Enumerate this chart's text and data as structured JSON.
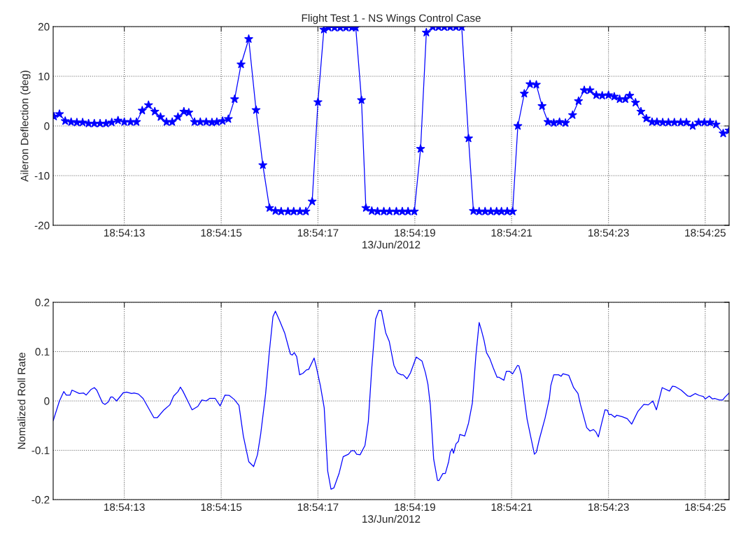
{
  "chart_data": [
    {
      "type": "line",
      "title": "Flight Test 1 - NS Wings Control Case",
      "xlabel": "13/Jun/2012",
      "ylabel": "Aileron Deflection (deg)",
      "xlim": [
        18.903203,
        18.907081
      ],
      "xticks": [
        {
          "value": 18.903611,
          "label": "18:54:13"
        },
        {
          "value": 18.904167,
          "label": "18:54:15"
        },
        {
          "value": 18.904722,
          "label": "18:54:17"
        },
        {
          "value": 18.905278,
          "label": "18:54:19"
        },
        {
          "value": 18.905833,
          "label": "18:54:21"
        },
        {
          "value": 18.906389,
          "label": "18:54:23"
        },
        {
          "value": 18.906944,
          "label": "18:54:25"
        }
      ],
      "ylim": [
        -20,
        20
      ],
      "yticks": [
        -20,
        -10,
        0,
        10,
        20
      ],
      "grid": true,
      "marker": "star",
      "line_style": "solid",
      "series": [
        {
          "color": "#0000ff",
          "x": [
            18.903208,
            18.903239,
            18.903272,
            18.903306,
            18.903339,
            18.903372,
            18.903406,
            18.903439,
            18.903472,
            18.903506,
            18.903539,
            18.903575,
            18.903611,
            18.903647,
            18.903681,
            18.903714,
            18.90375,
            18.903786,
            18.903819,
            18.903853,
            18.903886,
            18.903919,
            18.903953,
            18.903981,
            18.904014,
            18.904047,
            18.904081,
            18.904114,
            18.904142,
            18.904175,
            18.904208,
            18.904244,
            18.904281,
            18.904325,
            18.904367,
            18.904406,
            18.904444,
            18.904478,
            18.904511,
            18.90455,
            18.904583,
            18.904619,
            18.904653,
            18.904689,
            18.904722,
            18.904756,
            18.904783,
            18.904817,
            18.90485,
            18.904883,
            18.904917,
            18.904939,
            18.904972,
            18.904997,
            18.905031,
            18.905064,
            18.9051,
            18.905133,
            18.905172,
            18.905206,
            18.905239,
            18.905275,
            18.905311,
            18.905344,
            18.905381,
            18.905414,
            18.905447,
            18.905481,
            18.905514,
            18.905547,
            18.905586,
            18.905614,
            18.905647,
            18.905681,
            18.905714,
            18.905747,
            18.905775,
            18.905808,
            18.905839,
            18.905869,
            18.905906,
            18.905939,
            18.905975,
            18.906008,
            18.906042,
            18.906075,
            18.906108,
            18.906142,
            18.906183,
            18.906217,
            18.90625,
            18.906283,
            18.906319,
            18.906353,
            18.906389,
            18.906422,
            18.906453,
            18.906486,
            18.906511,
            18.906544,
            18.906575,
            18.906606,
            18.906639,
            18.906667,
            18.9067,
            18.906733,
            18.906767,
            18.906803,
            18.906836,
            18.906872,
            18.906906,
            18.906939,
            18.906972,
            18.907006,
            18.907047,
            18.907081
          ],
          "values": [
            1.9,
            2.4,
            1.0,
            0.8,
            0.7,
            0.7,
            0.5,
            0.5,
            0.5,
            0.5,
            0.7,
            1.1,
            0.8,
            0.8,
            0.8,
            3.1,
            4.2,
            2.9,
            1.8,
            0.8,
            0.8,
            1.8,
            2.9,
            2.7,
            0.8,
            0.8,
            0.8,
            0.7,
            0.8,
            1.0,
            1.4,
            5.4,
            12.4,
            17.5,
            3.2,
            -7.9,
            -16.5,
            -17.1,
            -17.2,
            -17.2,
            -17.2,
            -17.2,
            -17.2,
            -15.2,
            4.8,
            19.4,
            19.8,
            19.8,
            19.8,
            19.8,
            19.8,
            19.8,
            5.2,
            -16.5,
            -17.1,
            -17.2,
            -17.2,
            -17.2,
            -17.2,
            -17.2,
            -17.2,
            -17.2,
            -4.6,
            18.8,
            19.9,
            19.9,
            19.9,
            19.9,
            19.9,
            19.9,
            -2.5,
            -17.1,
            -17.2,
            -17.2,
            -17.2,
            -17.2,
            -17.2,
            -17.2,
            -17.2,
            0.0,
            6.5,
            8.4,
            8.3,
            4.0,
            0.8,
            0.6,
            0.8,
            0.6,
            2.2,
            5.0,
            7.2,
            7.2,
            6.2,
            6.1,
            6.2,
            5.9,
            5.4,
            5.4,
            6.1,
            4.7,
            2.9,
            1.5,
            0.8,
            0.8,
            0.7,
            0.7,
            0.7,
            0.7,
            0.7,
            0.0,
            0.7,
            0.7,
            0.7,
            0.3,
            -1.5,
            -0.9
          ]
        }
      ]
    },
    {
      "type": "line",
      "xlabel": "13/Jun/2012",
      "ylabel": "Nomalized Roll Rate",
      "xlim": [
        18.903203,
        18.907081
      ],
      "xticks": [
        {
          "value": 18.903611,
          "label": "18:54:13"
        },
        {
          "value": 18.904167,
          "label": "18:54:15"
        },
        {
          "value": 18.904722,
          "label": "18:54:17"
        },
        {
          "value": 18.905278,
          "label": "18:54:19"
        },
        {
          "value": 18.905833,
          "label": "18:54:21"
        },
        {
          "value": 18.906389,
          "label": "18:54:23"
        },
        {
          "value": 18.906944,
          "label": "18:54:25"
        }
      ],
      "ylim": [
        -0.2,
        0.2
      ],
      "yticks": [
        -0.2,
        -0.1,
        0,
        0.1,
        0.2
      ],
      "grid": true,
      "line_style": "solid",
      "series": [
        {
          "color": "#0000ff",
          "x": [
            18.903203,
            18.903239,
            18.903264,
            18.903278,
            18.9033,
            18.903311,
            18.903353,
            18.903378,
            18.903392,
            18.903419,
            18.903439,
            18.903453,
            18.903486,
            18.9035,
            18.903519,
            18.903533,
            18.903544,
            18.903567,
            18.903606,
            18.903625,
            18.903653,
            18.903667,
            18.903692,
            18.903719,
            18.903781,
            18.9038,
            18.903839,
            18.903872,
            18.903894,
            18.903919,
            18.903933,
            18.903947,
            18.903975,
            18.904,
            18.904033,
            18.904056,
            18.904081,
            18.9041,
            18.904133,
            18.904161,
            18.904189,
            18.904214,
            18.904242,
            18.904269,
            18.904294,
            18.904325,
            18.904353,
            18.904375,
            18.904394,
            18.904422,
            18.904442,
            18.904464,
            18.904478,
            18.904503,
            18.904531,
            18.904564,
            18.904575,
            18.904586,
            18.9046,
            18.904617,
            18.904636,
            18.904656,
            18.904669,
            18.9047,
            18.904714,
            18.904736,
            18.904758,
            18.904778,
            18.904797,
            18.904814,
            18.904844,
            18.904867,
            18.904897,
            18.904914,
            18.904931,
            18.904944,
            18.904964,
            18.904992,
            18.905011,
            18.905031,
            18.905053,
            18.905072,
            18.905086,
            18.905111,
            18.905131,
            18.905158,
            18.905178,
            18.9052,
            18.905211,
            18.905233,
            18.905253,
            18.905286,
            18.905319,
            18.905339,
            18.905353,
            18.905367,
            18.905386,
            18.905408,
            18.905417,
            18.905439,
            18.905453,
            18.905472,
            18.905481,
            18.905492,
            18.9055,
            18.905514,
            18.905528,
            18.905536,
            18.905564,
            18.905586,
            18.905608,
            18.905628,
            18.905647,
            18.905661,
            18.905675,
            18.905689,
            18.905708,
            18.905728,
            18.90575,
            18.905761,
            18.905789,
            18.905803,
            18.905822,
            18.905839,
            18.905867,
            18.905875,
            18.905889,
            18.905908,
            18.905922,
            18.905942,
            18.905964,
            18.905975,
            18.905992,
            18.906025,
            18.90605,
            18.906058,
            18.906075,
            18.906103,
            18.906117,
            18.906128,
            18.906161,
            18.906189,
            18.906214,
            18.906228,
            18.906264,
            18.906283,
            18.906303,
            18.906317,
            18.906331,
            18.90635,
            18.906369,
            18.906383,
            18.906392,
            18.906403,
            18.906425,
            18.906436,
            18.906469,
            18.906497,
            18.906522,
            18.906558,
            18.906592,
            18.906617,
            18.906644,
            18.906664,
            18.906697,
            18.906739,
            18.906756,
            18.906772,
            18.906806,
            18.906844,
            18.906858,
            18.906886,
            18.906911,
            18.906933,
            18.906944,
            18.906967,
            18.906986,
            18.907,
            18.907025,
            18.907044,
            18.907058,
            18.907081
          ],
          "values": [
            -0.04,
            0.0,
            0.019,
            0.012,
            0.012,
            0.022,
            0.015,
            0.016,
            0.012,
            0.023,
            0.027,
            0.022,
            -0.004,
            -0.007,
            -0.002,
            0.008,
            0.008,
            0.0,
            0.017,
            0.018,
            0.015,
            0.016,
            0.014,
            0.005,
            -0.034,
            -0.034,
            -0.018,
            -0.008,
            0.01,
            0.019,
            0.028,
            0.02,
            0.0,
            -0.018,
            -0.011,
            0.002,
            0.0,
            0.005,
            0.005,
            -0.01,
            0.012,
            0.011,
            0.003,
            -0.009,
            -0.071,
            -0.123,
            -0.133,
            -0.109,
            -0.066,
            0.015,
            0.095,
            0.171,
            0.182,
            0.162,
            0.138,
            0.095,
            0.093,
            0.098,
            0.09,
            0.053,
            0.056,
            0.063,
            0.064,
            0.087,
            0.067,
            0.031,
            -0.014,
            -0.142,
            -0.179,
            -0.176,
            -0.146,
            -0.113,
            -0.108,
            -0.101,
            -0.101,
            -0.108,
            -0.109,
            -0.09,
            -0.042,
            0.067,
            0.166,
            0.184,
            0.183,
            0.138,
            0.121,
            0.072,
            0.057,
            0.053,
            0.053,
            0.045,
            0.057,
            0.089,
            0.081,
            0.057,
            0.034,
            -0.009,
            -0.118,
            -0.161,
            -0.161,
            -0.147,
            -0.147,
            -0.123,
            -0.104,
            -0.097,
            -0.106,
            -0.087,
            -0.082,
            -0.068,
            -0.071,
            -0.045,
            -0.004,
            0.091,
            0.159,
            0.142,
            0.123,
            0.098,
            0.086,
            0.067,
            0.048,
            0.048,
            0.042,
            0.06,
            0.06,
            0.055,
            0.072,
            0.071,
            0.053,
            0.0,
            -0.037,
            -0.071,
            -0.108,
            -0.104,
            -0.078,
            -0.035,
            0.005,
            0.031,
            0.053,
            0.053,
            0.05,
            0.055,
            0.052,
            0.027,
            0.015,
            -0.007,
            -0.054,
            -0.061,
            -0.058,
            -0.063,
            -0.073,
            -0.045,
            -0.018,
            -0.019,
            -0.028,
            -0.027,
            -0.033,
            -0.029,
            -0.032,
            -0.036,
            -0.047,
            -0.021,
            -0.007,
            -0.008,
            0.0,
            -0.018,
            0.027,
            0.02,
            0.03,
            0.029,
            0.022,
            0.01,
            0.009,
            0.015,
            0.011,
            0.009,
            0.004,
            0.01,
            0.004,
            0.005,
            0.002,
            0.002,
            0.008,
            0.016
          ]
        }
      ]
    }
  ]
}
